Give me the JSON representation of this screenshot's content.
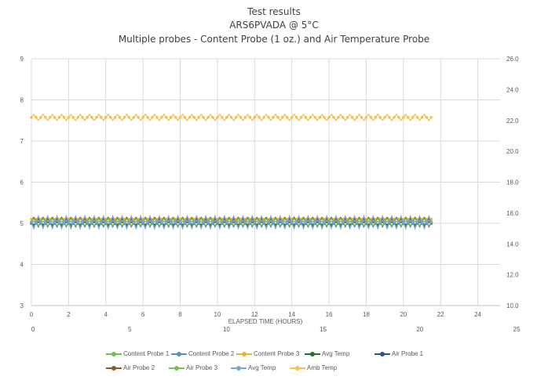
{
  "chart_data": {
    "type": "line",
    "title_lines": [
      "Test results",
      "ARS6PVADA @ 5°C",
      "Multiple probes - Content Probe (1 oz.) and Air Temperature Probe"
    ],
    "xlabel": "ELAPSED TIME (HOURS)",
    "ylabel": "",
    "xlim": [
      0,
      25
    ],
    "ylim": [
      3,
      9
    ],
    "y2lim": [
      10.0,
      26.0
    ],
    "x_ticks_primary": [
      "0",
      "2",
      "4",
      "6",
      "8",
      "10",
      "12",
      "14",
      "16",
      "18",
      "20",
      "22",
      "24"
    ],
    "x_ticks_secondary": [
      "0",
      "5",
      "10",
      "15",
      "20",
      "25"
    ],
    "y_ticks": [
      "3",
      "4",
      "5",
      "6",
      "7",
      "8",
      "9"
    ],
    "y2_ticks": [
      "10.0",
      "12.0",
      "14.0",
      "16.0",
      "18.0",
      "20.0",
      "22.0",
      "24.0",
      "26.0"
    ],
    "grid": true,
    "legend_position": "bottom",
    "time_range_hours": [
      0,
      21.5
    ],
    "oscillation_period_hours": 0.5,
    "series": [
      {
        "name": "Content Probe 1",
        "axis": "left",
        "color": "#70c050",
        "center": 5.0,
        "amplitude": 0.05
      },
      {
        "name": "Content Probe 2",
        "axis": "left",
        "color": "#5b8fd6",
        "center": 5.0,
        "amplitude": 0.08
      },
      {
        "name": "Content Probe 3",
        "axis": "left",
        "color": "#f0b030",
        "center": 5.1,
        "amplitude": 0.05
      },
      {
        "name": "Avg Temp",
        "axis": "left",
        "color": "#2e6b2e",
        "center": 5.0,
        "amplitude": 0.03
      },
      {
        "name": "Air Probe 1",
        "axis": "right",
        "color": "#2f4e8c",
        "center": 15.4,
        "amplitude": 0.3
      },
      {
        "name": "Air Probe 2",
        "axis": "right",
        "color": "#8c5a2a",
        "center": 15.4,
        "amplitude": 0.25
      },
      {
        "name": "Air Probe 3",
        "axis": "right",
        "color": "#7dbb5c",
        "center": 15.4,
        "amplitude": 0.25
      },
      {
        "name": "Avg Temp",
        "axis": "right",
        "color": "#6fa8dc",
        "center": 15.4,
        "amplitude": 0.4
      },
      {
        "name": "Amb Temp",
        "axis": "right",
        "color": "#f2c14e",
        "center": 22.2,
        "amplitude": 0.2
      }
    ]
  }
}
